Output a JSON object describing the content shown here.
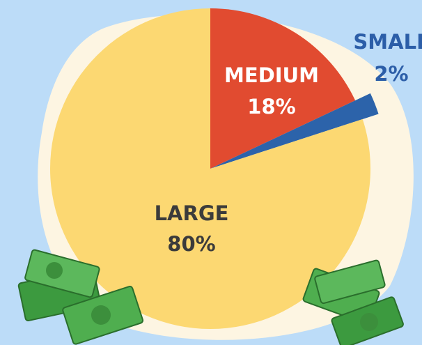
{
  "chart_data": {
    "type": "pie",
    "categories": [
      "MEDIUM",
      "SMALL",
      "LARGE"
    ],
    "values": [
      18,
      2,
      80
    ],
    "value_labels": [
      "18%",
      "2%",
      "80%"
    ],
    "colors": [
      "#e14b30",
      "#2c63aa",
      "#fcd872"
    ],
    "label_colors": [
      "#ffffff",
      "#2c5ea8",
      "#3b3b3b"
    ]
  }
}
